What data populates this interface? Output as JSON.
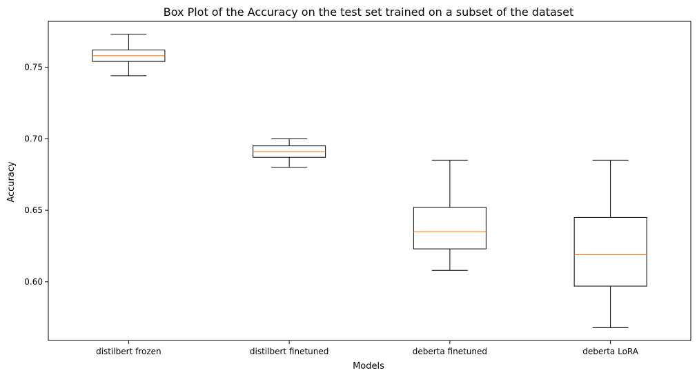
{
  "chart_data": {
    "type": "box",
    "title": "Box Plot of the Accuracy on the test set trained on a subset of the dataset",
    "xlabel": "Models",
    "ylabel": "Accuracy",
    "ylim": [
      0.559,
      0.782
    ],
    "yticks": [
      0.6,
      0.65,
      0.7,
      0.75
    ],
    "ytick_labels": [
      "0.60",
      "0.65",
      "0.70",
      "0.75"
    ],
    "grid": false,
    "categories": [
      "distilbert frozen",
      "distilbert finetuned",
      "deberta finetuned",
      "deberta LoRA"
    ],
    "boxes": [
      {
        "whisker_low": 0.744,
        "q1": 0.754,
        "median": 0.758,
        "q3": 0.762,
        "whisker_high": 0.773
      },
      {
        "whisker_low": 0.68,
        "q1": 0.687,
        "median": 0.691,
        "q3": 0.695,
        "whisker_high": 0.7
      },
      {
        "whisker_low": 0.608,
        "q1": 0.623,
        "median": 0.635,
        "q3": 0.652,
        "whisker_high": 0.685
      },
      {
        "whisker_low": 0.568,
        "q1": 0.597,
        "median": 0.619,
        "q3": 0.645,
        "whisker_high": 0.685
      }
    ],
    "colors": {
      "box": "#000000",
      "median": "#ff7f0e"
    }
  }
}
